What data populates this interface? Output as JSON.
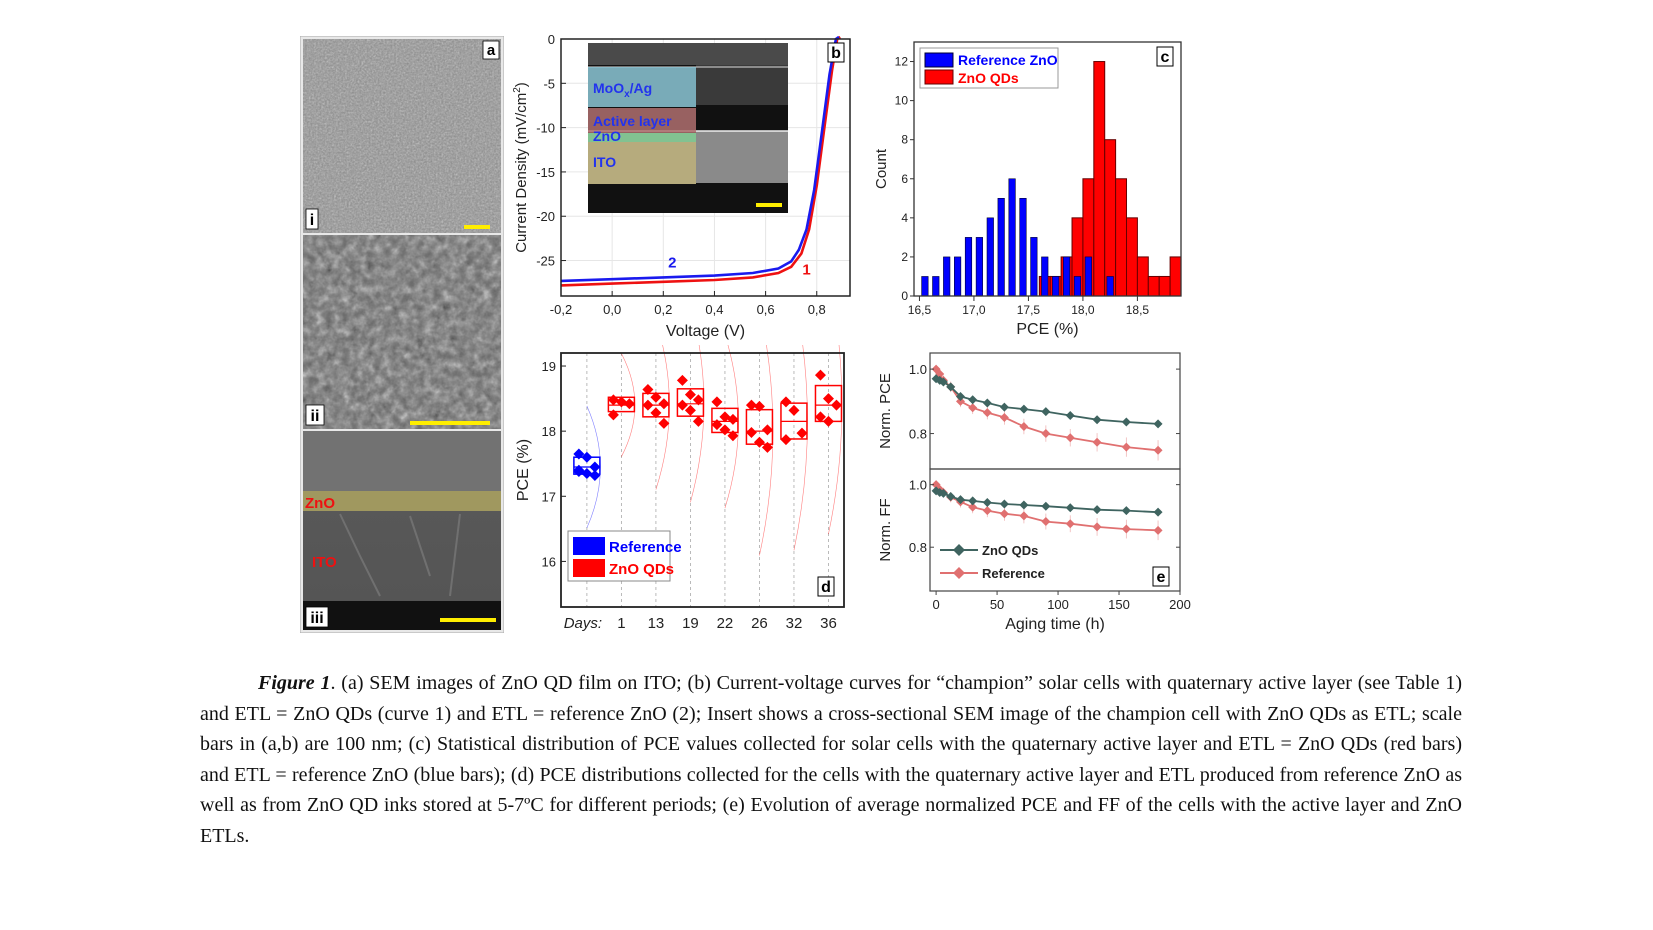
{
  "panel_a": {
    "label": "a",
    "sub_labels": [
      "i",
      "ii",
      "iii"
    ],
    "layer_labels": {
      "zno": "ZnO",
      "ito": "ITO"
    }
  },
  "chart_data": [
    {
      "panel": "b",
      "type": "line",
      "xlabel": "Voltage (V)",
      "ylabel": "Current Density (mV/cm",
      "ylabel_sup": "2",
      "ylabel_end": ")",
      "xlim": [
        -0.2,
        0.93
      ],
      "ylim": [
        -29,
        0
      ],
      "xticks": [
        "-0,2",
        "0,0",
        "0,2",
        "0,4",
        "0,6",
        "0,8"
      ],
      "xtick_values": [
        -0.2,
        0.0,
        0.2,
        0.4,
        0.6,
        0.8
      ],
      "yticks": [
        "0",
        "-5",
        "-10",
        "-15",
        "-20",
        "-25"
      ],
      "ytick_values": [
        0,
        -5,
        -10,
        -15,
        -20,
        -25
      ],
      "series": [
        {
          "name": "1",
          "color": "#ee1111",
          "x": [
            -0.2,
            0.0,
            0.2,
            0.4,
            0.55,
            0.65,
            0.7,
            0.74,
            0.77,
            0.8,
            0.83,
            0.86,
            0.88
          ],
          "y": [
            -27.8,
            -27.6,
            -27.4,
            -27.2,
            -26.9,
            -26.4,
            -25.7,
            -24.2,
            -21.5,
            -16.5,
            -10,
            -3.5,
            0
          ]
        },
        {
          "name": "2",
          "color": "#1a1aee",
          "x": [
            -0.2,
            0.0,
            0.2,
            0.4,
            0.55,
            0.65,
            0.7,
            0.73,
            0.76,
            0.79,
            0.82,
            0.85,
            0.875
          ],
          "y": [
            -27.3,
            -27.1,
            -26.9,
            -26.7,
            -26.4,
            -25.9,
            -25.1,
            -23.8,
            -21.5,
            -17,
            -10.5,
            -4,
            0
          ]
        }
      ],
      "inset": {
        "layers": [
          "MoOx/Ag",
          "Active layer",
          "ZnO",
          "ITO"
        ],
        "moox_main": "MoO",
        "moox_sub": "x",
        "moox_rest": "/Ag"
      },
      "panel_label": "b"
    },
    {
      "panel": "c",
      "type": "bar",
      "xlabel": "PCE (%)",
      "ylabel": "Count",
      "xlim": [
        16.45,
        18.9
      ],
      "ylim": [
        0,
        13
      ],
      "xticks": [
        "16,5",
        "17,0",
        "17,5",
        "18,0",
        "18,5"
      ],
      "xtick_values": [
        16.5,
        17.0,
        17.5,
        18.0,
        18.5
      ],
      "yticks": [
        "0",
        "2",
        "4",
        "6",
        "8",
        "10",
        "12"
      ],
      "ytick_values": [
        0,
        2,
        4,
        6,
        8,
        10,
        12
      ],
      "bin_width": 0.1,
      "series": [
        {
          "name": "ZnO QDs",
          "color": "#ff0000",
          "bins": [
            17.65,
            17.75,
            17.85,
            17.95,
            18.05,
            18.15,
            18.25,
            18.35,
            18.45,
            18.55,
            18.65,
            18.75,
            18.85
          ],
          "values": [
            1,
            1,
            2,
            4,
            6,
            12,
            8,
            6,
            4,
            2,
            1,
            1,
            2
          ]
        },
        {
          "name": "Reference ZnO",
          "color": "#0000ff",
          "bins": [
            16.55,
            16.65,
            16.75,
            16.85,
            16.95,
            17.05,
            17.15,
            17.25,
            17.35,
            17.45,
            17.55,
            17.65,
            17.75,
            17.85,
            17.95,
            18.05,
            18.25
          ],
          "values": [
            1,
            1,
            2,
            2,
            3,
            3,
            4,
            5,
            6,
            5,
            3,
            2,
            1,
            2,
            1,
            2,
            1
          ]
        }
      ],
      "legend": [
        "Reference ZnO",
        "ZnO QDs"
      ],
      "legend_position": "top-left",
      "panel_label": "c"
    },
    {
      "panel": "d",
      "type": "box",
      "ylabel": "PCE (%)",
      "xlabel_prefix": "Days:",
      "ylim": [
        15.3,
        19.2
      ],
      "yticks": [
        "16",
        "17",
        "18",
        "19"
      ],
      "ytick_values": [
        16,
        17,
        18,
        19
      ],
      "categories": [
        "",
        "1",
        "13",
        "19",
        "22",
        "26",
        "32",
        "36"
      ],
      "groups": [
        {
          "name": "Reference",
          "color": "#0000ff",
          "q1": 17.34,
          "median": 17.45,
          "q3": 17.6,
          "points": [
            17.65,
            17.6,
            17.45,
            17.4,
            17.35,
            17.32,
            17.38
          ]
        },
        {
          "name": "1",
          "color": "#ff0000",
          "q1": 18.3,
          "median": 18.4,
          "q3": 18.52,
          "points": [
            18.48,
            18.45,
            18.42,
            18.25
          ]
        },
        {
          "name": "13",
          "color": "#ff0000",
          "q1": 18.22,
          "median": 18.4,
          "q3": 18.58,
          "points": [
            18.64,
            18.52,
            18.42,
            18.4,
            18.28,
            18.12
          ]
        },
        {
          "name": "19",
          "color": "#ff0000",
          "q1": 18.23,
          "median": 18.42,
          "q3": 18.65,
          "points": [
            18.78,
            18.56,
            18.48,
            18.4,
            18.32,
            18.15
          ]
        },
        {
          "name": "22",
          "color": "#ff0000",
          "q1": 17.98,
          "median": 18.15,
          "q3": 18.35,
          "points": [
            18.45,
            18.22,
            18.18,
            18.1,
            18.02,
            17.93
          ]
        },
        {
          "name": "26",
          "color": "#ff0000",
          "q1": 17.8,
          "median": 18.0,
          "q3": 18.33,
          "points": [
            18.4,
            18.38,
            18.02,
            17.98,
            17.83,
            17.75
          ]
        },
        {
          "name": "32",
          "color": "#ff0000",
          "q1": 17.88,
          "median": 18.15,
          "q3": 18.43,
          "points": [
            18.45,
            18.32,
            17.97,
            17.87
          ]
        },
        {
          "name": "36",
          "color": "#ff0000",
          "q1": 18.15,
          "median": 18.4,
          "q3": 18.7,
          "points": [
            18.86,
            18.5,
            18.4,
            18.22,
            18.15
          ]
        }
      ],
      "legend": [
        "Reference",
        "ZnO QDs"
      ],
      "legend_position": "bottom-left",
      "panel_label": "d"
    },
    {
      "panel": "e",
      "type": "line",
      "xlabel": "Aging time (h)",
      "xlim": [
        -5,
        200
      ],
      "xticks": [
        "0",
        "50",
        "100",
        "150",
        "200"
      ],
      "xtick_values": [
        0,
        50,
        100,
        150,
        200
      ],
      "subplots": [
        {
          "ylabel": "Norm. PCE",
          "ylim": [
            0.69,
            1.05
          ],
          "yticks": [
            "1.0",
            "0.8"
          ],
          "ytick_values": [
            1.0,
            0.8
          ],
          "series": [
            {
              "name": "ZnO QDs",
              "color": "#3f6460",
              "x": [
                0,
                3,
                6,
                12,
                20,
                30,
                42,
                56,
                72,
                90,
                110,
                132,
                156,
                182
              ],
              "y": [
                0.97,
                0.965,
                0.96,
                0.945,
                0.915,
                0.905,
                0.895,
                0.882,
                0.876,
                0.868,
                0.856,
                0.843,
                0.836,
                0.83
              ]
            },
            {
              "name": "Reference",
              "color": "#e07070",
              "x": [
                0,
                3,
                6,
                12,
                20,
                30,
                42,
                56,
                72,
                90,
                110,
                132,
                156,
                182
              ],
              "y": [
                1.0,
                0.985,
                0.965,
                0.945,
                0.9,
                0.88,
                0.865,
                0.85,
                0.822,
                0.8,
                0.787,
                0.773,
                0.758,
                0.748
              ]
            }
          ]
        },
        {
          "ylabel": "Norm. FF",
          "ylim": [
            0.66,
            1.05
          ],
          "yticks": [
            "1.0",
            "0.8"
          ],
          "ytick_values": [
            1.0,
            0.8
          ],
          "series": [
            {
              "name": "ZnO QDs",
              "color": "#3f6460",
              "x": [
                0,
                3,
                6,
                12,
                20,
                30,
                42,
                56,
                72,
                90,
                110,
                132,
                156,
                182
              ],
              "y": [
                0.98,
                0.975,
                0.972,
                0.962,
                0.952,
                0.948,
                0.943,
                0.938,
                0.935,
                0.931,
                0.926,
                0.92,
                0.917,
                0.912
              ]
            },
            {
              "name": "Reference",
              "color": "#e07070",
              "x": [
                0,
                3,
                6,
                12,
                20,
                30,
                42,
                56,
                72,
                90,
                110,
                132,
                156,
                182
              ],
              "y": [
                1.0,
                0.985,
                0.975,
                0.96,
                0.945,
                0.928,
                0.917,
                0.907,
                0.9,
                0.882,
                0.875,
                0.865,
                0.858,
                0.854
              ]
            }
          ]
        }
      ],
      "legend": [
        "ZnO QDs",
        "Reference"
      ],
      "legend_position": "bottom-left",
      "panel_label": "e"
    }
  ],
  "caption": {
    "figure_label": "Figure 1",
    "text": ". (a) SEM images of ZnO QD film on ITO; (b) Current-voltage curves for “champion” solar cells with quaternary active layer (see Table 1) and ETL = ZnO QDs (curve 1) and ETL = reference ZnO (2); Insert shows a cross-sectional SEM image of the champion cell with ZnO QDs as ETL; scale bars in (a,b) are 100 nm; (c) Statistical distribution of PCE values collected for solar cells with the quaternary active layer and ETL = ZnO QDs (red bars) and ETL = reference ZnO (blue bars); (d) PCE distributions collected for the cells with the quaternary active layer and ETL produced from reference ZnO as well as from ZnO QD inks stored at 5-7ºC for different periods; (e) Evolution of average normalized PCE and FF of the cells with the active layer and ZnO ETLs."
  }
}
